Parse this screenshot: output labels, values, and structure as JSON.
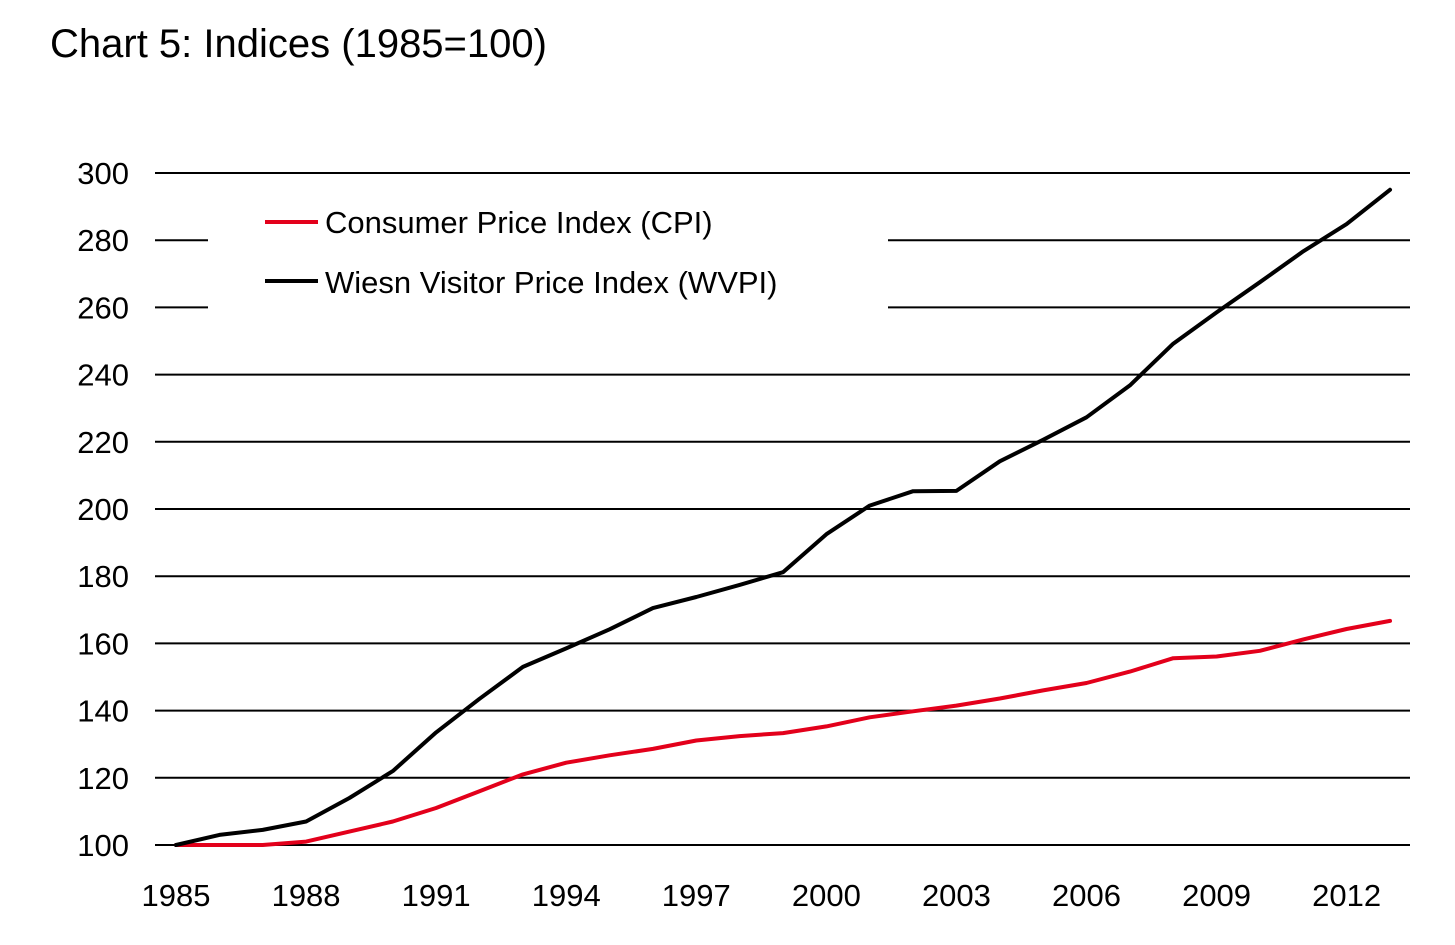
{
  "chart_data": {
    "type": "line",
    "title": "Chart 5: Indices (1985=100)",
    "xlabel": "",
    "ylabel": "",
    "x": [
      1985,
      1986,
      1987,
      1988,
      1989,
      1990,
      1991,
      1992,
      1993,
      1994,
      1995,
      1996,
      1997,
      1998,
      1999,
      2000,
      2001,
      2002,
      2003,
      2004,
      2005,
      2006,
      2007,
      2008,
      2009,
      2010,
      2011,
      2012,
      2013
    ],
    "x_ticks": [
      "1985",
      "1988",
      "1991",
      "1994",
      "1997",
      "2000",
      "2003",
      "2006",
      "2009",
      "2012"
    ],
    "x_tick_values": [
      1985,
      1988,
      1991,
      1994,
      1997,
      2000,
      2003,
      2006,
      2009,
      2012
    ],
    "xlim": [
      1985,
      2013
    ],
    "y_ticks": [
      "100",
      "120",
      "140",
      "160",
      "180",
      "200",
      "220",
      "240",
      "260",
      "280",
      "300"
    ],
    "y_tick_values": [
      100,
      120,
      140,
      160,
      180,
      200,
      220,
      240,
      260,
      280,
      300
    ],
    "ylim": [
      100,
      300
    ],
    "grid": "horizontal",
    "legend_position": "top-left",
    "series": [
      {
        "name": "Consumer Price Index (CPI)",
        "color": "#e3001b",
        "values": [
          100,
          100,
          100,
          101,
          104,
          107,
          111,
          116,
          121,
          124.5,
          126.7,
          128.6,
          131.1,
          132.4,
          133.3,
          135.3,
          138,
          139.8,
          141.5,
          143.6,
          146,
          148.2,
          151.6,
          155.6,
          156.1,
          157.8,
          161.2,
          164.3,
          166.7
        ]
      },
      {
        "name": "Wiesn Visitor Price Index (WVPI)",
        "color": "#000000",
        "values": [
          100,
          103,
          104.5,
          107,
          114,
          122,
          133.5,
          143.5,
          153,
          158.5,
          164.2,
          170.5,
          173.8,
          177.4,
          181.2,
          192.5,
          201,
          205.3,
          205.4,
          214.2,
          220.6,
          227.3,
          236.8,
          249.2,
          258.5,
          267.5,
          276.7,
          284.8,
          295
        ]
      }
    ]
  }
}
